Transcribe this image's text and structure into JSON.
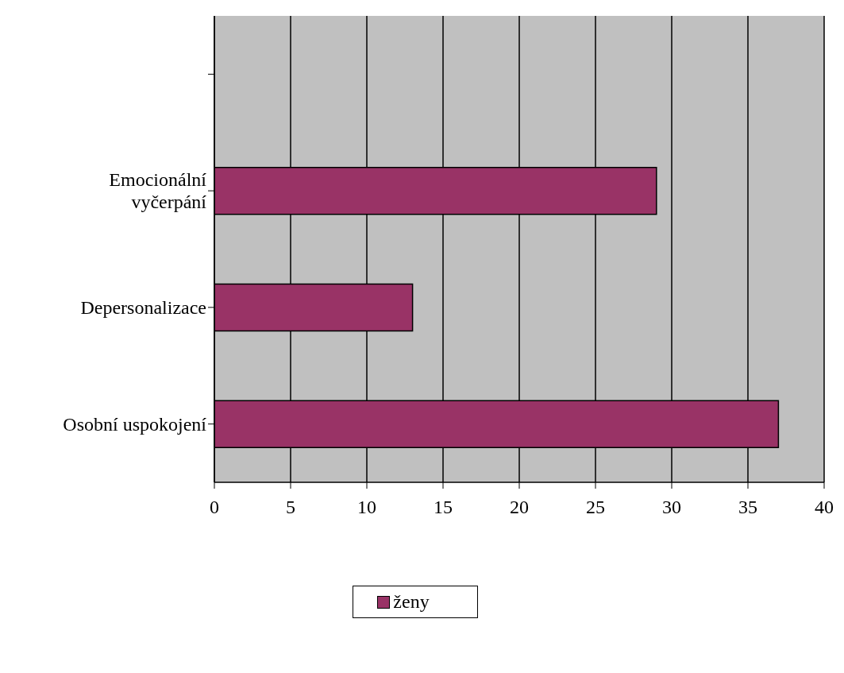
{
  "chart_data": {
    "type": "bar",
    "orientation": "horizontal",
    "categories": [
      null,
      "Emocionální vyčerpání",
      "Depersonalizace",
      "Osobní uspokojení"
    ],
    "series": [
      {
        "name": "ženy",
        "color": "#993366",
        "values": [
          null,
          29,
          13,
          37
        ]
      }
    ],
    "xlim": [
      0,
      40
    ],
    "xticks": [
      0,
      5,
      10,
      15,
      20,
      25,
      30,
      35,
      40
    ],
    "grid": "x",
    "legend": "bottom"
  }
}
